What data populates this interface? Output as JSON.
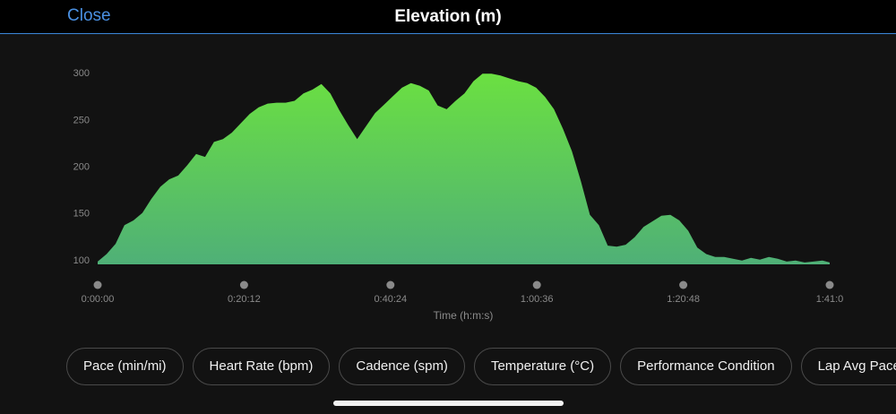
{
  "header": {
    "close_label": "Close",
    "title": "Elevation (m)",
    "accent_color": "#4a90e2"
  },
  "chart_data": {
    "type": "area",
    "title": "Elevation (m)",
    "xlabel": "Time (h:m:s)",
    "ylabel": "",
    "xlim": [
      0,
      6060
    ],
    "ylim": [
      95,
      305
    ],
    "y_ticks": [
      100,
      150,
      200,
      250,
      300
    ],
    "x_ticks": [
      {
        "value": 0,
        "label": "0:00:00"
      },
      {
        "value": 1212,
        "label": "0:20:12"
      },
      {
        "value": 2424,
        "label": "0:40:24"
      },
      {
        "value": 3636,
        "label": "1:00:36"
      },
      {
        "value": 4848,
        "label": "1:20:48"
      },
      {
        "value": 6060,
        "label": "1:41:0"
      }
    ],
    "grid": false,
    "fill_color_top": "#6be041",
    "fill_color_bottom": "#4fb077",
    "series": [
      {
        "x": [
          0,
          74,
          148,
          222,
          296,
          370,
          444,
          519,
          593,
          667,
          741,
          815,
          889,
          963,
          1037,
          1111,
          1185,
          1259,
          1333,
          1408,
          1482,
          1556,
          1630,
          1704,
          1778,
          1852,
          1926,
          2000,
          2074,
          2148,
          2222,
          2297,
          2371,
          2445,
          2519,
          2593,
          2667,
          2741,
          2815,
          2889,
          2963,
          3037,
          3111,
          3186,
          3260,
          3334,
          3408,
          3482,
          3556,
          3630,
          3704,
          3778,
          3852,
          3926,
          4000,
          4075,
          4149,
          4223,
          4297,
          4371,
          4445,
          4519,
          4593,
          4667,
          4741,
          4815,
          4889,
          4964,
          5038,
          5112,
          5186,
          5260,
          5334,
          5408,
          5482,
          5556,
          5630,
          5704,
          5778,
          5852,
          5926,
          6000,
          6060
        ],
        "values": [
          98,
          106,
          117,
          137,
          142,
          150,
          165,
          178,
          186,
          190,
          201,
          213,
          210,
          226,
          229,
          236,
          246,
          256,
          263,
          267,
          268,
          268,
          270,
          278,
          282,
          288,
          278,
          260,
          244,
          229,
          243,
          257,
          266,
          275,
          284,
          289,
          286,
          281,
          265,
          261,
          270,
          278,
          291,
          299,
          299,
          297,
          294,
          291,
          289,
          284,
          274,
          261,
          240,
          216,
          184,
          148,
          137,
          115,
          114,
          116,
          124,
          135,
          141,
          147,
          148,
          142,
          131,
          113,
          106,
          103,
          103,
          101,
          99,
          102,
          100,
          103,
          101,
          98,
          99,
          97,
          98,
          99,
          97
        ]
      }
    ]
  },
  "chips": [
    {
      "label": "Pace (min/mi)"
    },
    {
      "label": "Heart Rate (bpm)"
    },
    {
      "label": "Cadence (spm)"
    },
    {
      "label": "Temperature (°C)"
    },
    {
      "label": "Performance Condition"
    },
    {
      "label": "Lap Avg Pace"
    }
  ]
}
